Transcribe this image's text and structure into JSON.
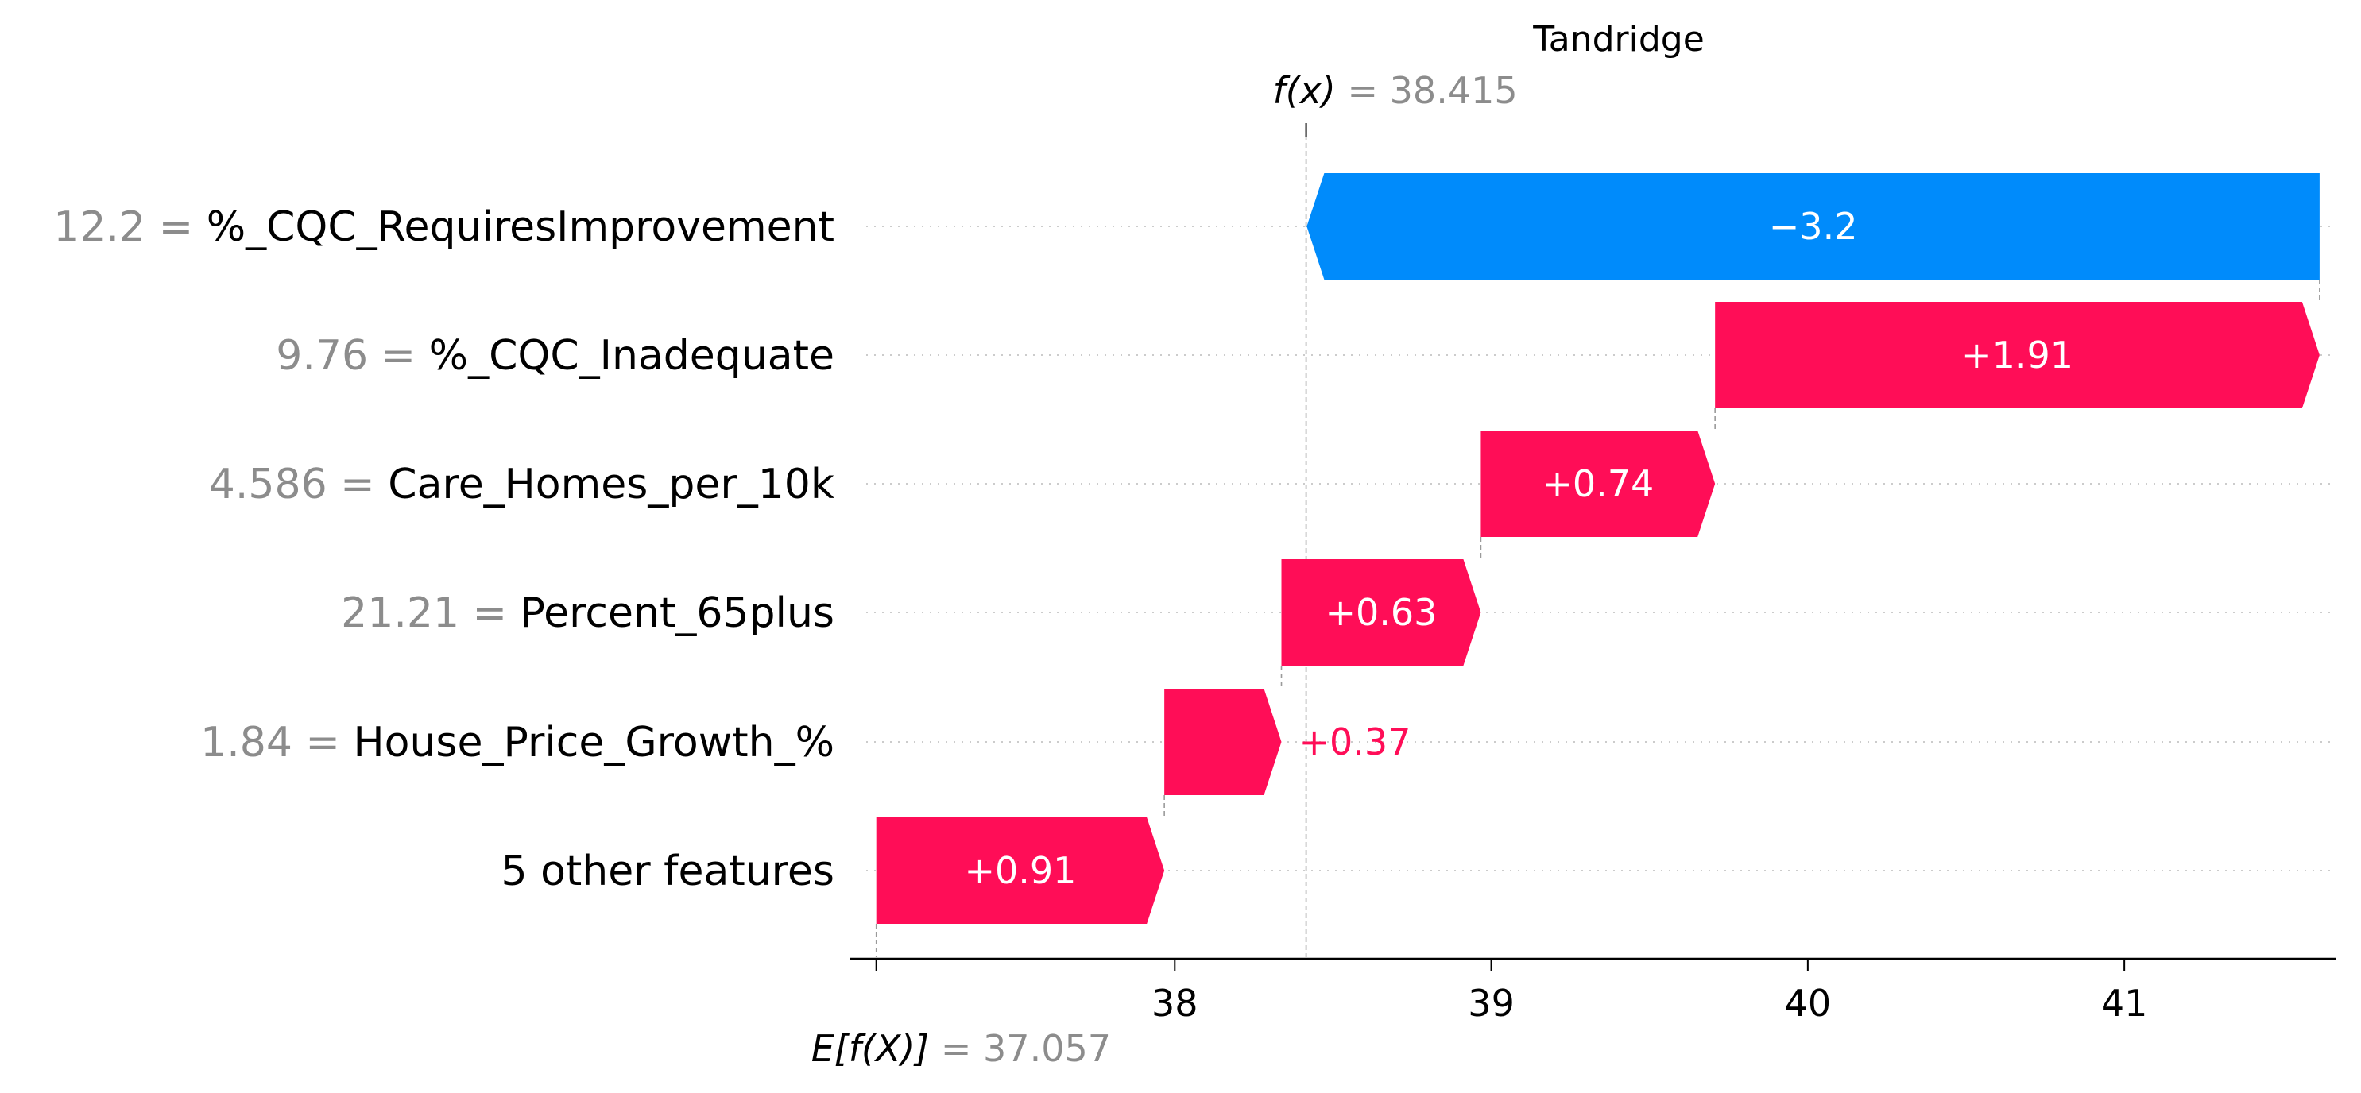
{
  "chart_data": {
    "type": "waterfall",
    "title": "Tandridge",
    "base_value": 37.057,
    "base_label": "E[f(X)]",
    "output_value": 38.415,
    "output_label": "f(x)",
    "features": [
      {
        "name": "%_CQC_RequiresImprovement",
        "value": "12.2",
        "contribution": -3.2,
        "label": "−3.2"
      },
      {
        "name": "%_CQC_Inadequate",
        "value": "9.76",
        "contribution": 1.91,
        "label": "+1.91"
      },
      {
        "name": "Care_Homes_per_10k",
        "value": "4.586",
        "contribution": 0.74,
        "label": "+0.74"
      },
      {
        "name": "Percent_65plus",
        "value": "21.21",
        "contribution": 0.63,
        "label": "+0.63"
      },
      {
        "name": "House_Price_Growth_%",
        "value": "1.84",
        "contribution": 0.37,
        "label": "+0.37"
      },
      {
        "name": "5 other features",
        "value": "",
        "contribution": 0.91,
        "label": "+0.91"
      }
    ],
    "xticks": [
      38,
      39,
      40,
      41
    ],
    "xlim": [
      37.0,
      41.67
    ],
    "grid": false,
    "colors": {
      "positive": "#ff0d57",
      "negative": "#008bfb",
      "value_text": "#8c8c8c"
    }
  }
}
